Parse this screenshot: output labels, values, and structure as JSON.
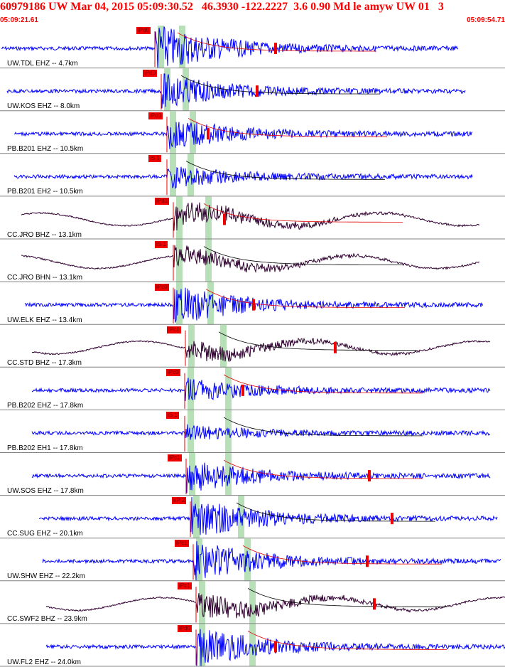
{
  "header": {
    "title": "60979186 UW Mar 04, 2015 05:09:30.52   46.3930 -122.2227  3.6 0.90 Md le amyw UW 01   3",
    "time_start": "05:09:21.61",
    "time_end": "05:09:54.71"
  },
  "colors": {
    "short_period": "#0000ff",
    "broadband": "#300030",
    "pick": "#ee0000",
    "window": "#b8e0b8",
    "divider": "#808080"
  },
  "traces": [
    {
      "label": "UW.TDL EHZ -- 4.7km",
      "pick": "iPd0",
      "kind": "sp"
    },
    {
      "label": "UW.KOS EHZ -- 8.0km",
      "pick": "iPd0",
      "kind": "sp"
    },
    {
      "label": "PB.B201 EHZ -- 10.5km",
      "pick": "iPd0",
      "kind": "sp"
    },
    {
      "label": "PB.B201 EH2 -- 10.5km",
      "pick": "iS 1",
      "kind": "sp"
    },
    {
      "label": "CC.JRO BHZ -- 13.1km",
      "pick": "iPd1",
      "kind": "bb"
    },
    {
      "label": "CC.JRO BHN -- 13.1km",
      "pick": "iS 1",
      "kind": "bb"
    },
    {
      "label": "UW.ELK EHZ -- 13.4km",
      "pick": "iPc0",
      "kind": "sp"
    },
    {
      "label": "CC.STD BHZ -- 17.3km",
      "pick": "iPc1",
      "kind": "bb"
    },
    {
      "label": "PB.B202 EHZ -- 17.8km",
      "pick": "iPc0",
      "kind": "sp"
    },
    {
      "label": "PB.B202 EH1 -- 17.8km",
      "pick": "iS 1",
      "kind": "sp"
    },
    {
      "label": "UW.SOS EHZ -- 17.8km",
      "pick": "iPc1",
      "kind": "sp"
    },
    {
      "label": "CC.SUG EHZ -- 20.1km",
      "pick": "eP 2",
      "kind": "sp"
    },
    {
      "label": "UW.SHW EHZ -- 22.2km",
      "pick": "iPc1",
      "kind": "sp"
    },
    {
      "label": "CC.SWF2 BHZ -- 23.9km",
      "pick": "iPc1",
      "kind": "bb"
    },
    {
      "label": "UW.FL2 EHZ -- 24.0km",
      "pick": "iPd0",
      "kind": "sp"
    }
  ]
}
